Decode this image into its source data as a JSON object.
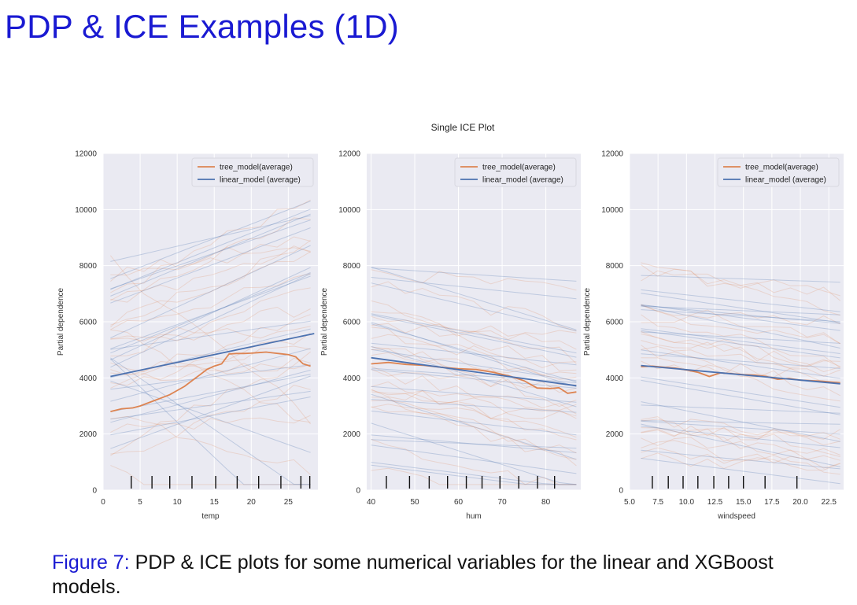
{
  "slide": {
    "title": "PDP & ICE Examples (1D)",
    "caption_label": "Figure 7:",
    "caption_text": " PDP & ICE plots for some numerical variables for the linear and XGBoost models."
  },
  "colors": {
    "title_blue": "#1a1ad2",
    "panel_bg": "#eaeaf2",
    "grid": "#ffffff",
    "tree": "#dd8452",
    "linear": "#4c72b0"
  },
  "chart_data": {
    "type": "line",
    "title": "Single ICE Plot",
    "ylabel": "Partial dependence",
    "ylim": [
      0,
      12000
    ],
    "yticks": [
      "0",
      "2000",
      "4000",
      "6000",
      "8000",
      "10000",
      "12000"
    ],
    "grid": true,
    "legend_placement": "upper right",
    "panels": [
      {
        "xlabel": "temp",
        "xlim": [
          0,
          29
        ],
        "xticks": [
          0,
          5,
          10,
          15,
          20,
          25
        ],
        "xtick_labels": [
          "0",
          "5",
          "10",
          "15",
          "20",
          "25"
        ],
        "deciles": [
          3.8,
          6.6,
          9.0,
          12.0,
          15.2,
          18.1,
          21.0,
          24.0,
          26.7,
          27.9
        ],
        "series": [
          {
            "name": "tree_model(average)",
            "x": [
              1,
              2.5,
              4,
              5,
              6,
              7,
              8,
              9,
              10,
              11,
              12,
              13,
              14,
              15,
              16,
              17,
              18,
              19,
              20,
              21,
              22,
              23,
              24,
              25,
              26,
              27,
              28
            ],
            "y": [
              2800,
              2900,
              2930,
              3000,
              3100,
              3200,
              3300,
              3400,
              3550,
              3700,
              3900,
              4100,
              4300,
              4420,
              4500,
              4850,
              4870,
              4870,
              4880,
              4900,
              4920,
              4890,
              4860,
              4830,
              4750,
              4500,
              4420
            ]
          },
          {
            "name": "linear_model (average)",
            "x": [
              1,
              28.5
            ],
            "y": [
              4050,
              5580
            ]
          }
        ]
      },
      {
        "xlabel": "hum",
        "xlim": [
          39,
          88
        ],
        "xticks": [
          40,
          50,
          60,
          70,
          80
        ],
        "xtick_labels": [
          "40",
          "50",
          "60",
          "70",
          "80"
        ],
        "deciles": [
          43.5,
          48.8,
          53.3,
          57.5,
          61.8,
          65.4,
          69.5,
          73.8,
          78.1,
          82.0
        ],
        "series": [
          {
            "name": "tree_model(average)",
            "x": [
              40,
              44,
              48,
              52,
              56,
              60,
              64,
              68,
              72,
              75,
              78,
              81,
              83,
              85,
              87
            ],
            "y": [
              4500,
              4550,
              4480,
              4450,
              4380,
              4330,
              4300,
              4200,
              4050,
              3900,
              3640,
              3620,
              3650,
              3450,
              3500
            ]
          },
          {
            "name": "linear_model (average)",
            "x": [
              40,
              87
            ],
            "y": [
              4720,
              3720
            ]
          }
        ]
      },
      {
        "xlabel": "windspeed",
        "xlim": [
          5,
          23.8
        ],
        "xticks": [
          5,
          7.5,
          10,
          12.5,
          15,
          17.5,
          20,
          22.5
        ],
        "xtick_labels": [
          "5.0",
          "7.5",
          "10.0",
          "12.5",
          "15.0",
          "17.5",
          "20.0",
          "22.5"
        ],
        "deciles": [
          7.0,
          8.4,
          9.7,
          11.0,
          12.4,
          13.7,
          15.0,
          16.9,
          19.7
        ],
        "series": [
          {
            "name": "tree_model(average)",
            "x": [
              6,
              7,
              8,
              9,
              10,
              11,
              12,
              13,
              14,
              15,
              16,
              17,
              18,
              19,
              20,
              21,
              22,
              23.5
            ],
            "y": [
              4400,
              4420,
              4380,
              4350,
              4280,
              4200,
              4050,
              4180,
              4150,
              4120,
              4100,
              4050,
              3950,
              3980,
              3920,
              3900,
              3880,
              3820
            ]
          },
          {
            "name": "linear_model (average)",
            "x": [
              6,
              23.5
            ],
            "y": [
              4440,
              3790
            ]
          }
        ]
      }
    ]
  }
}
